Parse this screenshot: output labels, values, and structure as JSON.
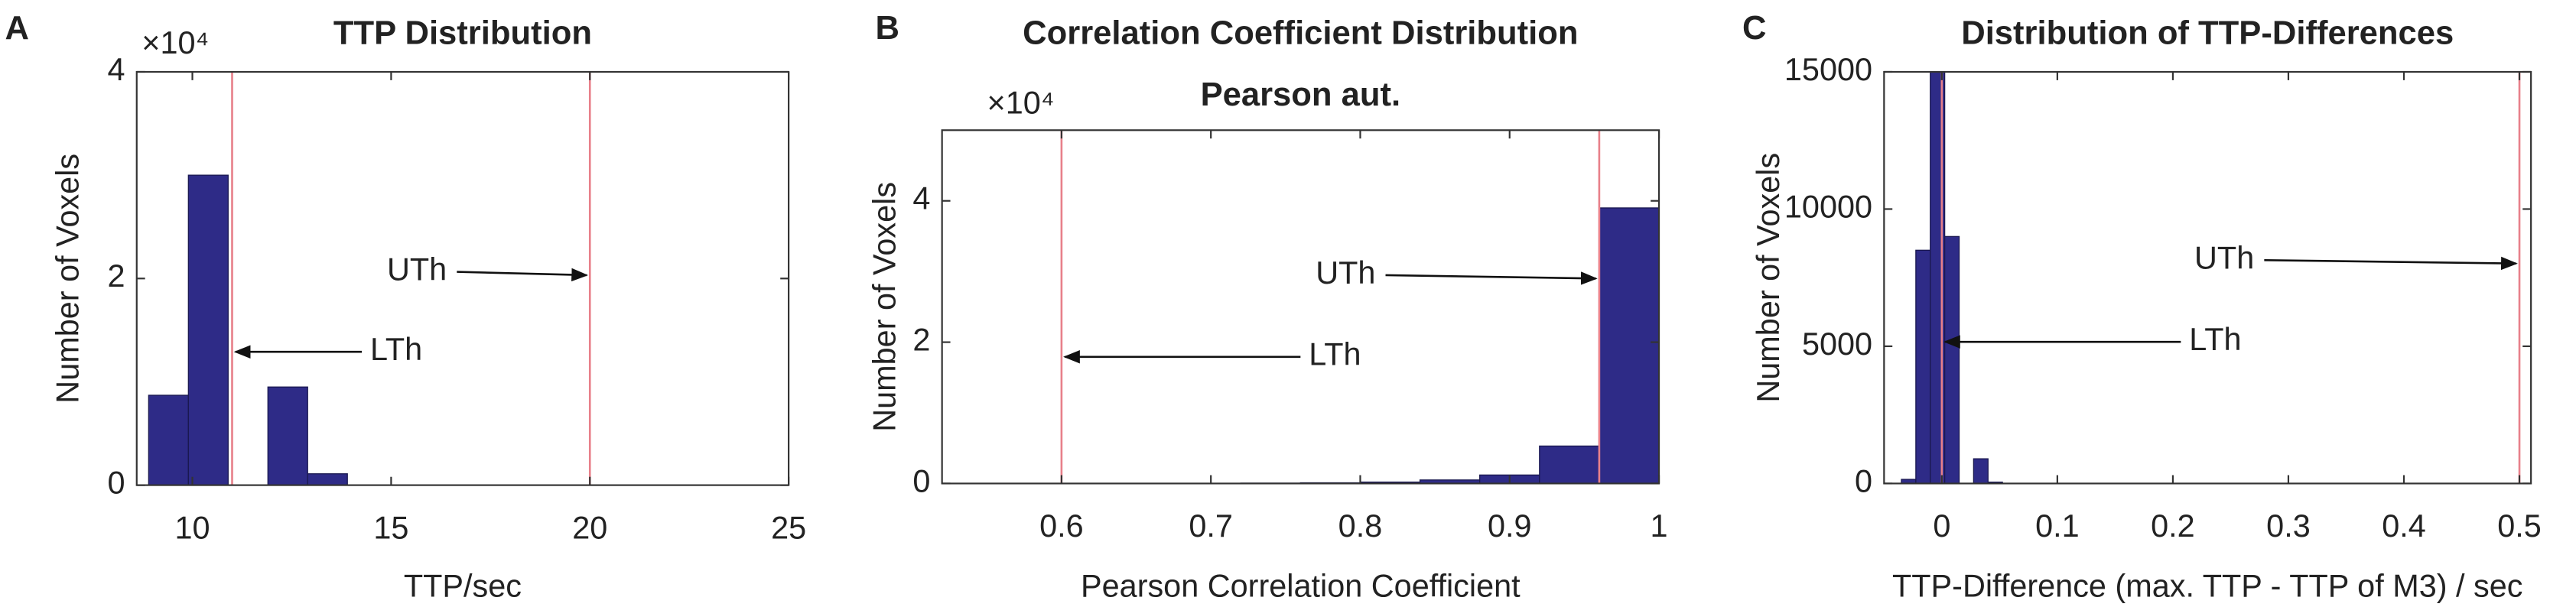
{
  "chart_data": [
    {
      "type": "histogram",
      "panel_label": "A",
      "title": "TTP Distribution",
      "xlabel": "TTP/sec",
      "ylabel": "Number of Voxels",
      "y_exponent_label": "×10⁴",
      "bins": [
        8.9,
        9.9,
        10.9,
        11.9,
        12.9,
        13.9
      ],
      "counts": [
        0.87,
        3.0,
        0,
        0.95,
        0.11
      ],
      "xlim": [
        8.6,
        25
      ],
      "xticks": [
        10,
        15,
        20,
        25
      ],
      "ylim": [
        0,
        4
      ],
      "yticks": [
        0,
        2,
        4
      ],
      "color": "#2e2b87",
      "threshold_color": "#e8808a",
      "thresholds": [
        {
          "name": "LTh",
          "value": 11
        },
        {
          "name": "UTh",
          "value": 20
        }
      ]
    },
    {
      "type": "histogram",
      "panel_label": "B",
      "title": "Correlation Coefficient Distribution",
      "subtitle": "Pearson aut.",
      "xlabel": "Pearson Correlation Coefficient",
      "ylabel": "Number of Voxels",
      "y_exponent_label": "×10⁴",
      "bins": [
        0.72,
        0.76,
        0.8,
        0.84,
        0.88,
        0.92,
        0.96,
        1
      ],
      "counts": [
        0.005,
        0.01,
        0.02,
        0.05,
        0.12,
        0.53,
        3.9
      ],
      "xlim": [
        0.52,
        1
      ],
      "xticks": [
        0.6,
        0.7,
        0.8,
        0.9,
        1
      ],
      "ylim": [
        0,
        5
      ],
      "yticks": [
        0,
        2,
        4
      ],
      "color": "#2e2b87",
      "threshold_color": "#e8808a",
      "thresholds": [
        {
          "name": "LTh",
          "value": 0.6
        },
        {
          "name": "UTh",
          "value": 0.96
        }
      ]
    },
    {
      "type": "histogram",
      "panel_label": "C",
      "title": "Distribution of TTP-Differences",
      "xlabel": "TTP-Difference (max. TTP - TTP of M3) / sec",
      "ylabel": "Number of Voxels",
      "bins": [
        -0.035,
        -0.0225,
        -0.01,
        0.0025,
        0.015,
        0.0275,
        0.04,
        0.0525
      ],
      "counts": [
        150,
        8500,
        15000,
        9000,
        0,
        900,
        50
      ],
      "xlim": [
        -0.05,
        0.51
      ],
      "xticks": [
        0,
        0.1,
        0.2,
        0.3,
        0.4,
        0.5
      ],
      "ylim": [
        0,
        15000
      ],
      "yticks": [
        0,
        5000,
        10000,
        15000
      ],
      "color": "#2e2b87",
      "threshold_color": "#e8808a",
      "thresholds": [
        {
          "name": "LTh",
          "value": 0
        },
        {
          "name": "UTh",
          "value": 0.5
        }
      ]
    }
  ]
}
